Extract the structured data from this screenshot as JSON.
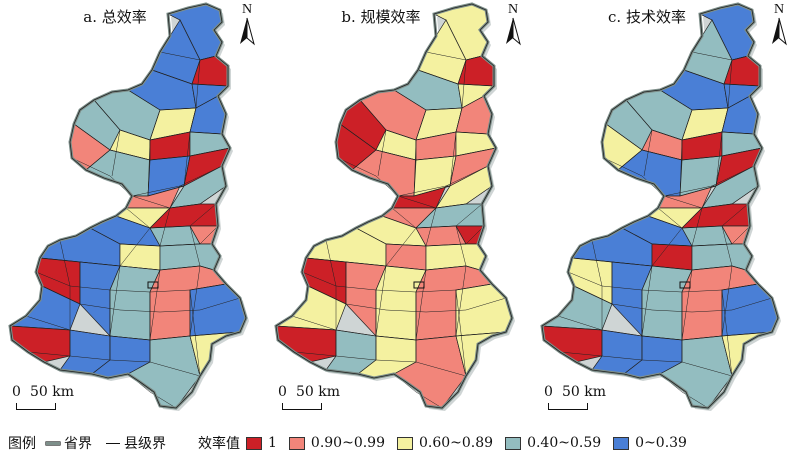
{
  "panels": [
    {
      "title": "a. 总效率",
      "north": "N",
      "palette": [
        "#4a7fd6",
        "#4a7fd6",
        "#cc2027",
        "#4a7fd6",
        "#4a7fd6",
        "#93bdc0",
        "#f4f1a0",
        "#4a7fd6",
        "#93bdc0",
        "#f4f1a0",
        "#cc2027",
        "#93bdc0",
        "#f2857a",
        "#93bdc0",
        "#4a7fd6",
        "#cc2027",
        "#f2857a",
        "#93bdc0",
        "#f4f1a0",
        "#cc2027",
        "#4a7fd6",
        "#93bdc0",
        "#f2857a",
        "#4a7fd6",
        "#f4f1a0",
        "#93bdc0",
        "#cc2027",
        "#4a7fd6",
        "#93bdc0",
        "#f2857a"
      ]
    },
    {
      "title": "b. 规模效率",
      "north": "N",
      "palette": [
        "#f4f1a0",
        "#f4f1a0",
        "#cc2027",
        "#93bdc0",
        "#f4f1a0",
        "#f2857a",
        "#f4f1a0",
        "#f2857a",
        "#cc2027",
        "#f4f1a0",
        "#f2857a",
        "#f4f1a0",
        "#cc2027",
        "#f2857a",
        "#f4f1a0",
        "#f2857a",
        "#cc2027",
        "#f4f1a0",
        "#f2857a",
        "#93bdc0",
        "#f4f1a0",
        "#f2857a",
        "#cc2027",
        "#f4f1a0",
        "#f2857a",
        "#f4f1a0",
        "#cc2027",
        "#f2857a",
        "#f4f1a0",
        "#f2857a"
      ]
    },
    {
      "title": "c. 技术效率",
      "north": "N",
      "palette": [
        "#4a7fd6",
        "#93bdc0",
        "#cc2027",
        "#4a7fd6",
        "#4a7fd6",
        "#93bdc0",
        "#f4f1a0",
        "#4a7fd6",
        "#93bdc0",
        "#f2857a",
        "#cc2027",
        "#93bdc0",
        "#f4f1a0",
        "#4a7fd6",
        "#93bdc0",
        "#cc2027",
        "#f2857a",
        "#93bdc0",
        "#f4f1a0",
        "#cc2027",
        "#4a7fd6",
        "#93bdc0",
        "#f2857a",
        "#4a7fd6",
        "#cc2027",
        "#93bdc0",
        "#f4f1a0",
        "#4a7fd6",
        "#93bdc0",
        "#f2857a"
      ]
    }
  ],
  "scale": {
    "zero": "0",
    "dist": "50 km"
  },
  "legend": {
    "title": "图例",
    "province_label": "省界",
    "county_label": "县级界",
    "value_title": "效率值",
    "classes": [
      {
        "label": "1",
        "color": "#cc2027"
      },
      {
        "label": "0.90~0.99",
        "color": "#f2857a"
      },
      {
        "label": "0.60~0.89",
        "color": "#f4f1a0"
      },
      {
        "label": "0.40~0.59",
        "color": "#93bdc0"
      },
      {
        "label": "0~0.39",
        "color": "#4a7fd6"
      }
    ]
  }
}
